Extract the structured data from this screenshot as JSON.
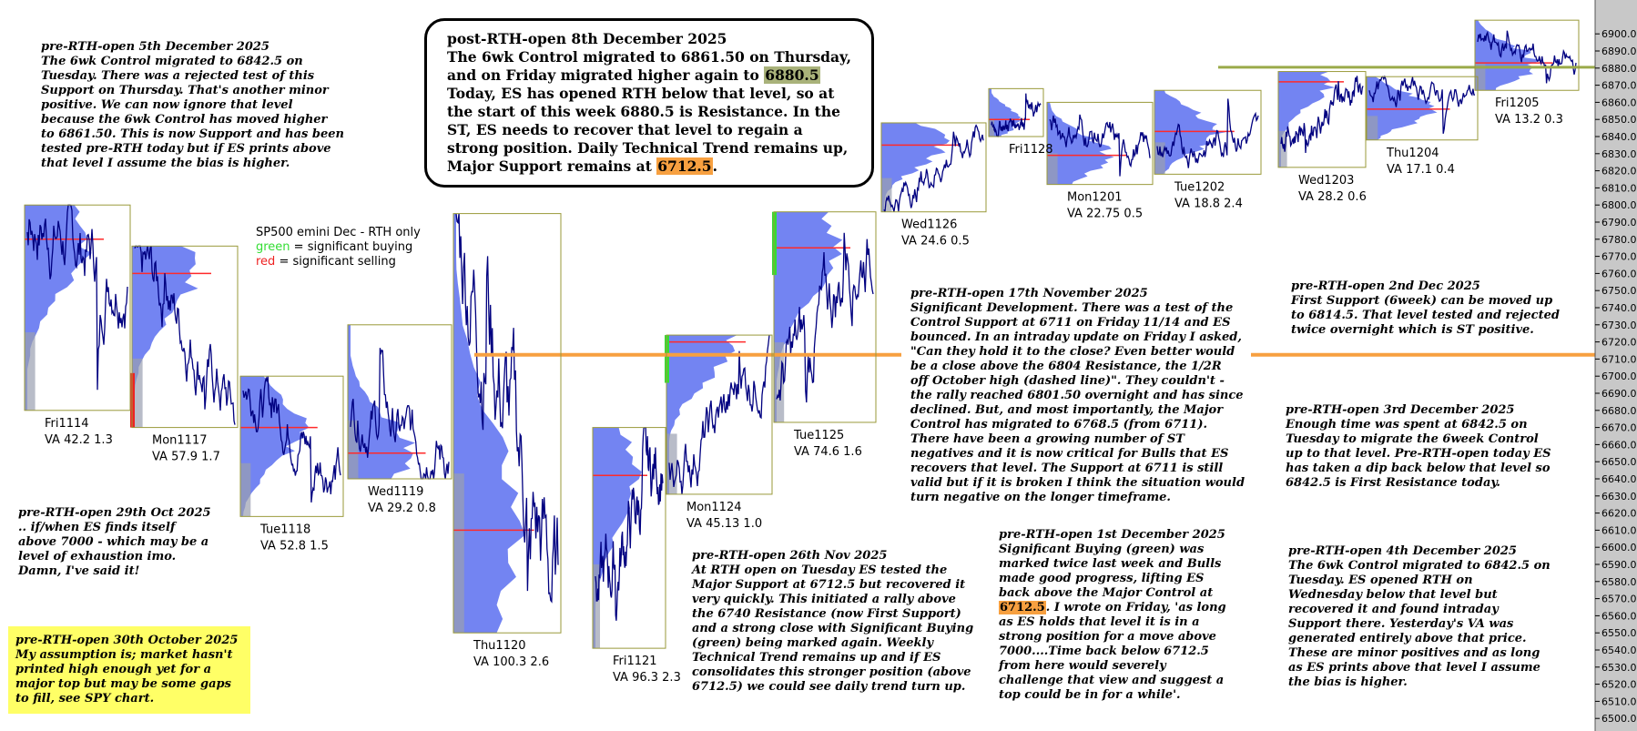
{
  "chart_data": {
    "type": "market-profile",
    "title": "SP500 emini  Dec - RTH only",
    "legend": [
      {
        "key": "green",
        "text": " = significant buying",
        "color": "#33dd33"
      },
      {
        "key": "red",
        "text": " = significant selling",
        "color": "#ee2222"
      }
    ],
    "ylim": [
      6500,
      6915
    ],
    "ytick_step": 10,
    "colors": {
      "price": "#000080",
      "profile": "#5b6ff0",
      "profile_ext": "#9aa0b0",
      "poc": "#ff2a2a",
      "support_line": "#f7a040",
      "resistance_line": "#9aaa4a"
    },
    "levels": [
      {
        "name": "Major Support",
        "value": 6712.5,
        "color": "#f7a040"
      },
      {
        "name": "Resistance",
        "value": 6880.5,
        "color": "#9aaa4a"
      }
    ],
    "sessions": [
      {
        "day": "Fri1114",
        "va_text": "VA 42.2  1.3",
        "high": 6800,
        "low": 6680,
        "poc": 6780,
        "open": 6790,
        "close": 6760,
        "sig": null
      },
      {
        "day": "Mon1117",
        "va_text": "VA 57.9  1.7",
        "high": 6776,
        "low": 6670,
        "poc": 6760,
        "open": 6770,
        "close": 6675,
        "sig": "red"
      },
      {
        "day": "Tue1118",
        "va_text": "VA 52.8  1.5",
        "high": 6700,
        "low": 6618,
        "poc": 6670,
        "open": 6695,
        "close": 6640,
        "sig": null
      },
      {
        "day": "Wed1119",
        "va_text": "VA 29.2  0.8",
        "high": 6730,
        "low": 6640,
        "poc": 6655,
        "open": 6680,
        "close": 6650,
        "sig": null
      },
      {
        "day": "Thu1120",
        "va_text": "VA 100.3  2.6",
        "high": 6795,
        "low": 6550,
        "poc": 6610,
        "open": 6780,
        "close": 6560,
        "sig": null
      },
      {
        "day": "Fri1121",
        "va_text": "VA 96.3  2.3",
        "high": 6670,
        "low": 6541,
        "poc": 6642,
        "open": 6570,
        "close": 6660,
        "sig": null
      },
      {
        "day": "Mon1124",
        "va_text": "VA 45.13 1.0",
        "high": 6724,
        "low": 6631,
        "poc": 6720,
        "open": 6640,
        "close": 6715,
        "sig": "green"
      },
      {
        "day": "Tue1125",
        "va_text": "VA 74.6  1.6",
        "high": 6796,
        "low": 6673,
        "poc": 6775,
        "open": 6700,
        "close": 6785,
        "sig": "green"
      },
      {
        "day": "Wed1126",
        "va_text": "VA 24.6  0.5",
        "high": 6848,
        "low": 6796,
        "poc": 6835,
        "open": 6800,
        "close": 6846,
        "sig": null
      },
      {
        "day": "Fri1128",
        "va_text": "",
        "high": 6868,
        "low": 6840,
        "poc": 6850,
        "open": 6845,
        "close": 6855,
        "sig": null
      },
      {
        "day": "Mon1201",
        "va_text": "VA 22.75  0.5",
        "high": 6860,
        "low": 6812,
        "poc": 6829,
        "open": 6845,
        "close": 6832,
        "sig": null
      },
      {
        "day": "Tue1202",
        "va_text": "VA 18.8  2.4",
        "high": 6867,
        "low": 6818,
        "poc": 6843,
        "open": 6830,
        "close": 6842,
        "sig": null
      },
      {
        "day": "Wed1203",
        "va_text": "VA 28.2  0.6",
        "high": 6878,
        "low": 6822,
        "poc": 6872,
        "open": 6840,
        "close": 6872,
        "sig": null
      },
      {
        "day": "Thu1204",
        "va_text": "VA 17.1  0.4",
        "high": 6875,
        "low": 6838,
        "poc": 6856,
        "open": 6868,
        "close": 6865,
        "sig": null
      },
      {
        "day": "Fri1205",
        "va_text": "VA 13.2  0.3",
        "high": 6908,
        "low": 6867,
        "poc": 6883,
        "open": 6895,
        "close": 6880,
        "sig": null
      }
    ]
  },
  "notes": {
    "top_center": {
      "l1": "post-RTH-open 8th December 2025",
      "l2": "The 6wk Control migrated to 6861.50 on Thursday,",
      "l3a": "and on Friday migrated higher again to ",
      "l3hl": "6880.5",
      "l4": "Today, ES has opened RTH below that level, so at",
      "l5": "the start of this week 6880.5 is Resistance. In the",
      "l6": "ST, ES needs to recover that level to regain a",
      "l7": "strong position. Daily Technical Trend remains up,",
      "l8a": "Major Support remains at ",
      "l8hl": "6712.5",
      "l8b": "."
    },
    "dec5": "pre-RTH-open 5th December 2025\nThe 6wk Control migrated to 6842.5 on\nTuesday. There was a rejected test of this\nSupport on Thursday. That's another minor\npositive. We can now ignore that level\nbecause the 6wk Control has moved higher\nto 6861.50. This is now Support and has been\ntested pre-RTH today but if ES prints above\nthat level I assume the bias is higher.",
    "oct29": "pre-RTH-open 29th Oct 2025\n.. if/when ES finds itself\nabove 7000 - which may be a\nlevel of exhaustion imo.\nDamn, I've said it!",
    "oct30": "pre-RTH-open 30th October 2025\nMy assumption is; market hasn't\nprinted high enough yet for a\nmajor top but may be some gaps\nto fill, see SPY chart.",
    "nov26": "pre-RTH-open 26th Nov 2025\nAt RTH open on Tuesday ES tested the\nMajor Support at 6712.5 but recovered it\nvery quickly. This initiated a rally above\nthe 6740 Resistance (now First Support)\nand a strong close with Significant Buying\n(green) being marked again. Weekly\nTechnical Trend remains up and if ES\nconsolidates this stronger position (above\n6712.5) we could see daily trend turn up.",
    "nov17": "pre-RTH-open 17th November 2025\nSignificant Development. There was a test of the\nControl Support at 6711 on Friday 11/14 and ES\nbounced. In an intraday update on Friday I asked,\n\"Can they hold it to the close?  Even better would\nbe a close above the 6804 Resistance, the 1/2R\noff October high (dashed line)\". They couldn't -\nthe rally reached 6801.50 overnight and has since\ndeclined. But, and most importantly, the Major\nControl has migrated to 6768.5 (from 6711).\nThere have been a growing number of ST\nnegatives and it is now critical for Bulls that ES\nrecovers that level. The Support at 6711 is still\nvalid but if it is broken I think the situation would\nturn negative on the longer timeframe.",
    "dec1": {
      "a": "pre-RTH-open 1st December 2025\nSignificant Buying (green) was\nmarked twice last week and Bulls\nmade good progress, lifting ES\nback above the Major Control at\n",
      "hl": "6712.5",
      "b": ". I wrote on Friday, 'as long\nas ES holds that level it is in a\nstrong position for a move above\n7000....Time back below 6712.5\nfrom here would severely\nchallenge that view and suggest a\ntop could be in for a while'."
    },
    "dec2": "pre-RTH-open 2nd Dec 2025\nFirst Support (6week) can be moved up\nto 6814.5. That level tested and rejected\ntwice overnight which is ST positive.",
    "dec3": "pre-RTH-open 3rd December 2025\nEnough time was spent at 6842.5 on\nTuesday to migrate the 6week Control\nup to that level. Pre-RTH-open today ES\nhas taken a dip back below that level so\n6842.5 is First Resistance today.",
    "dec4": "pre-RTH-open 4th December 2025\nThe 6wk Control migrated to 6842.5 on\nTuesday. ES opened RTH on\nWednesday below that level but\nrecovered it and found intraday\nSupport there. Yesterday's VA was\ngenerated entirely above that price.\nThese are minor positives and as long\nas ES prints above that level I assume\nthe bias is higher."
  }
}
